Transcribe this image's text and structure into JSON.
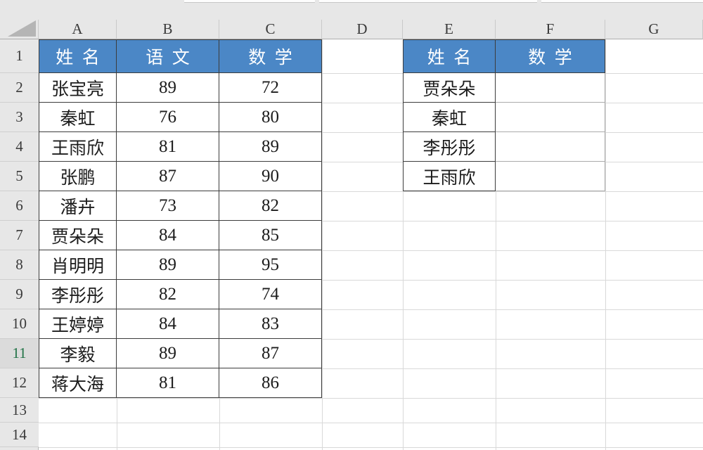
{
  "colors": {
    "table_header_fill": "#4b87c6",
    "table_header_text": "#ffffff",
    "selected_row_accent": "#217346",
    "header_area_bg": "#e7e7e7",
    "gridline": "#d9d9d9",
    "table_border": "#3c3c3c",
    "light_table_border": "#ababab"
  },
  "grid": {
    "columns": [
      "A",
      "B",
      "C",
      "D",
      "E",
      "F",
      "G"
    ],
    "rows": [
      "1",
      "2",
      "3",
      "4",
      "5",
      "6",
      "7",
      "8",
      "9",
      "10",
      "11",
      "12",
      "13",
      "14"
    ],
    "selected_row": "11"
  },
  "left_table": {
    "start_column": "A",
    "header": [
      "姓名",
      "语文",
      "数学"
    ],
    "rows": [
      [
        "张宝亮",
        "89",
        "72"
      ],
      [
        "秦虹",
        "76",
        "80"
      ],
      [
        "王雨欣",
        "81",
        "89"
      ],
      [
        "张鹏",
        "87",
        "90"
      ],
      [
        "潘卉",
        "73",
        "82"
      ],
      [
        "贾朵朵",
        "84",
        "85"
      ],
      [
        "肖明明",
        "89",
        "95"
      ],
      [
        "李彤彤",
        "82",
        "74"
      ],
      [
        "王婷婷",
        "84",
        "83"
      ],
      [
        "李毅",
        "89",
        "87"
      ],
      [
        "蒋大海",
        "81",
        "86"
      ]
    ]
  },
  "right_table": {
    "start_column": "E",
    "header": [
      "姓名",
      "数学"
    ],
    "rows": [
      [
        "贾朵朵",
        ""
      ],
      [
        "秦虹",
        ""
      ],
      [
        "李彤彤",
        ""
      ],
      [
        "王雨欣",
        ""
      ]
    ]
  }
}
